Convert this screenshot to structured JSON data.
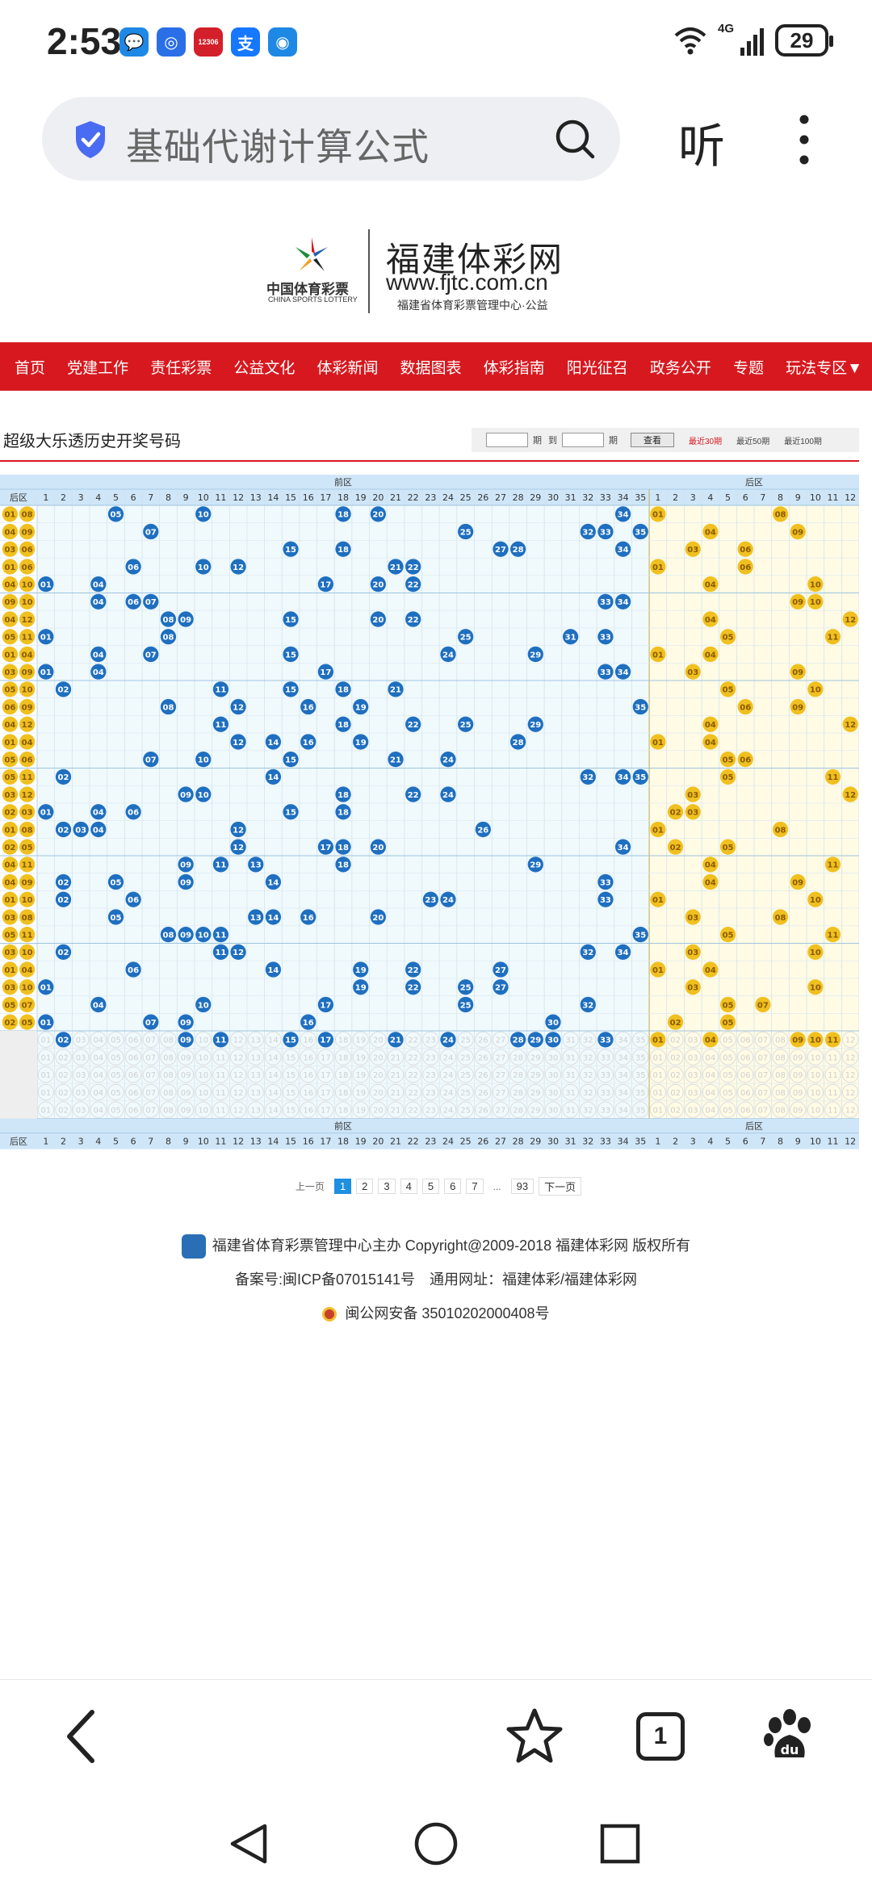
{
  "status_bar": {
    "time": "2:53",
    "battery": "29",
    "network": "4G",
    "app_icons": [
      {
        "name": "message-app-icon",
        "color": "#1e88e5",
        "glyph": "💬"
      },
      {
        "name": "assistant-app-icon",
        "color": "#2a6fe8",
        "glyph": "◎"
      },
      {
        "name": "railway-app-icon",
        "color": "#d31f2a",
        "glyph": "12306"
      },
      {
        "name": "alipay-app-icon",
        "color": "#1677ff",
        "glyph": "支"
      },
      {
        "name": "wallet-app-icon",
        "color": "#1e88e5",
        "glyph": "◉"
      }
    ]
  },
  "browser": {
    "search_text": "基础代谢计算公式",
    "listen_label": "听"
  },
  "site": {
    "lottery_cn": "中国体育彩票",
    "lottery_en": "CHINA SPORTS LOTTERY",
    "name": "福建体彩网",
    "url": "www.fjtc.com.cn",
    "subtitle": "福建省体育彩票管理中心·公益"
  },
  "nav": [
    "首页",
    "党建工作",
    "责任彩票",
    "公益文化",
    "体彩新闻",
    "数据图表",
    "体彩指南",
    "阳光征召",
    "政务公开",
    "专题",
    "玩法专区▼"
  ],
  "page_title": "超级大乐透历史开奖号码",
  "filter": {
    "period_label": "期",
    "to_label": "到",
    "period_label2": "期",
    "query_button": "查看",
    "recent_30": "最近30期",
    "recent_50": "最近50期",
    "recent_100": "最近100期"
  },
  "chart_data": {
    "type": "table",
    "front_zone_label": "前区",
    "back_zone_label": "后区",
    "row_header_label": "后区",
    "front_columns": 35,
    "back_columns": 12,
    "rows": [
      {
        "back": [
          "01",
          "08"
        ],
        "front": [
          5,
          10,
          18,
          20,
          34
        ],
        "back_hit": [
          1,
          8
        ]
      },
      {
        "back": [
          "04",
          "09"
        ],
        "front": [
          7,
          25,
          32,
          33,
          35
        ],
        "back_hit": [
          4,
          9
        ]
      },
      {
        "back": [
          "03",
          "06"
        ],
        "front": [
          15,
          18,
          27,
          28,
          34
        ],
        "back_hit": [
          3,
          6
        ]
      },
      {
        "back": [
          "01",
          "06"
        ],
        "front": [
          6,
          10,
          12,
          21,
          22
        ],
        "back_hit": [
          1,
          6
        ]
      },
      {
        "back": [
          "04",
          "10"
        ],
        "front": [
          1,
          4,
          17,
          20,
          22
        ],
        "back_hit": [
          4,
          10
        ]
      },
      {
        "back": [
          "09",
          "10"
        ],
        "front": [
          4,
          6,
          7,
          33,
          34
        ],
        "back_hit": [
          9,
          10
        ]
      },
      {
        "back": [
          "04",
          "12"
        ],
        "front": [
          8,
          9,
          15,
          20,
          22
        ],
        "back_hit": [
          4,
          12
        ]
      },
      {
        "back": [
          "05",
          "11"
        ],
        "front": [
          1,
          8,
          25,
          31,
          33
        ],
        "back_hit": [
          5,
          11
        ]
      },
      {
        "back": [
          "01",
          "04"
        ],
        "front": [
          4,
          7,
          15,
          24,
          29
        ],
        "back_hit": [
          1,
          4
        ]
      },
      {
        "back": [
          "03",
          "09"
        ],
        "front": [
          1,
          4,
          17,
          33,
          34
        ],
        "back_hit": [
          3,
          9
        ]
      },
      {
        "back": [
          "05",
          "10"
        ],
        "front": [
          2,
          11,
          15,
          18,
          21
        ],
        "back_hit": [
          5,
          10
        ]
      },
      {
        "back": [
          "06",
          "09"
        ],
        "front": [
          8,
          12,
          16,
          19,
          35
        ],
        "back_hit": [
          6,
          9
        ]
      },
      {
        "back": [
          "04",
          "12"
        ],
        "front": [
          11,
          18,
          22,
          25,
          29
        ],
        "back_hit": [
          4,
          12
        ]
      },
      {
        "back": [
          "01",
          "04"
        ],
        "front": [
          12,
          14,
          16,
          19,
          28
        ],
        "back_hit": [
          1,
          4
        ]
      },
      {
        "back": [
          "05",
          "06"
        ],
        "front": [
          7,
          10,
          15,
          21,
          24
        ],
        "back_hit": [
          5,
          6
        ]
      },
      {
        "back": [
          "05",
          "11"
        ],
        "front": [
          2,
          14,
          32,
          34,
          35
        ],
        "back_hit": [
          5,
          11
        ]
      },
      {
        "back": [
          "03",
          "12"
        ],
        "front": [
          9,
          10,
          18,
          22,
          24
        ],
        "back_hit": [
          3,
          12
        ]
      },
      {
        "back": [
          "02",
          "03"
        ],
        "front": [
          1,
          4,
          6,
          15,
          18
        ],
        "back_hit": [
          2,
          3
        ]
      },
      {
        "back": [
          "01",
          "08"
        ],
        "front": [
          2,
          3,
          4,
          12,
          26
        ],
        "back_hit": [
          1,
          8
        ]
      },
      {
        "back": [
          "02",
          "05"
        ],
        "front": [
          12,
          17,
          18,
          20,
          34
        ],
        "back_hit": [
          2,
          5
        ]
      },
      {
        "back": [
          "04",
          "11"
        ],
        "front": [
          9,
          11,
          13,
          18,
          29
        ],
        "back_hit": [
          4,
          11
        ]
      },
      {
        "back": [
          "04",
          "09"
        ],
        "front": [
          2,
          5,
          9,
          14,
          33
        ],
        "back_hit": [
          4,
          9
        ]
      },
      {
        "back": [
          "01",
          "10"
        ],
        "front": [
          2,
          6,
          23,
          24,
          33
        ],
        "back_hit": [
          1,
          10
        ]
      },
      {
        "back": [
          "03",
          "08"
        ],
        "front": [
          5,
          13,
          14,
          16,
          20
        ],
        "back_hit": [
          3,
          8
        ]
      },
      {
        "back": [
          "05",
          "11"
        ],
        "front": [
          8,
          9,
          10,
          11,
          35
        ],
        "back_hit": [
          5,
          11
        ]
      },
      {
        "back": [
          "03",
          "10"
        ],
        "front": [
          2,
          11,
          12,
          32,
          34
        ],
        "back_hit": [
          3,
          10
        ]
      },
      {
        "back": [
          "01",
          "04"
        ],
        "front": [
          6,
          14,
          19,
          22,
          27
        ],
        "back_hit": [
          1,
          4
        ]
      },
      {
        "back": [
          "03",
          "10"
        ],
        "front": [
          1,
          19,
          22,
          25,
          27
        ],
        "back_hit": [
          3,
          10
        ]
      },
      {
        "back": [
          "05",
          "07"
        ],
        "front": [
          4,
          10,
          17,
          25,
          32
        ],
        "back_hit": [
          5,
          7
        ]
      },
      {
        "back": [
          "02",
          "05"
        ],
        "front": [
          1,
          7,
          9,
          16,
          30
        ],
        "back_hit": [
          2,
          5
        ]
      }
    ],
    "summary_row": {
      "front": [
        2,
        9,
        11,
        15,
        17,
        21,
        24,
        28,
        29,
        30,
        33
      ],
      "back": [
        1,
        4,
        9,
        10,
        11
      ]
    },
    "empty_rows": 4
  },
  "pager": {
    "prev": "上一页",
    "pages": [
      "1",
      "2",
      "3",
      "4",
      "5",
      "6",
      "7",
      "...",
      "93"
    ],
    "next": "下一页",
    "current": "1"
  },
  "footer": {
    "line1": "福建省体育彩票管理中心主办 Copyright@2009-2018 福建体彩网 版权所有",
    "line2": "备案号:闽ICP备07015141号　通用网址：福建体彩/福建体彩网",
    "line3": "闽公网安备 35010202000408号"
  },
  "colors": {
    "nav_red": "#d7191f",
    "front_ball": "#1f6fc0",
    "back_ball": "#f0c020",
    "front_bg": "#f0fafd",
    "back_bg": "#fffbe5",
    "header_bg": "#cfe6f8"
  },
  "toolbar_tab_count": "1"
}
